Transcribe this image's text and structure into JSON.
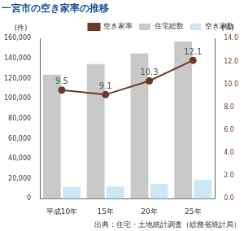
{
  "chart_data": {
    "type": "bar",
    "title": "一宮市の空き家率の推移",
    "source": "出典：住宅・土地統計調査（総務省統計局）",
    "ylabel": "(件)",
    "y2label": "(%)",
    "categories": [
      "平成10年",
      "15年",
      "20年",
      "25年"
    ],
    "series": [
      {
        "name": "住宅総数",
        "type": "bar",
        "color": "#c9c9c9",
        "values": [
          124000,
          134500,
          145000,
          157000
        ]
      },
      {
        "name": "空き家数",
        "type": "bar",
        "color": "#cde7f7",
        "values": [
          11800,
          12300,
          15000,
          19000
        ]
      },
      {
        "name": "空き家率",
        "type": "line",
        "color": "#6b3a2a",
        "marker": "circle",
        "line_style": "solid",
        "axis": "y2",
        "data_labels": true,
        "values": [
          9.5,
          9.1,
          10.3,
          12.1
        ]
      }
    ],
    "ylim": [
      0,
      160000
    ],
    "yticks": [
      0,
      {
        "value": 20000,
        "label": "20,000"
      },
      {
        "value": 40000,
        "label": "40,000"
      },
      {
        "value": 60000,
        "label": "60,000"
      },
      {
        "value": 80000,
        "label": "80,000"
      },
      {
        "value": 100000,
        "label": "100,000"
      },
      {
        "value": 120000,
        "label": "120,000"
      },
      {
        "value": 140000,
        "label": "140,000"
      },
      {
        "value": 160000,
        "label": "160,000"
      }
    ],
    "y2lim": [
      0,
      14
    ],
    "y2ticks": [
      {
        "value": 0,
        "label": "0.0"
      },
      {
        "value": 2,
        "label": "2.0"
      },
      {
        "value": 4,
        "label": "4.0"
      },
      {
        "value": 6,
        "label": "6.0"
      },
      {
        "value": 8,
        "label": "8.0"
      },
      {
        "value": 10,
        "label": "10.0"
      },
      {
        "value": 12,
        "label": "12.0"
      },
      {
        "value": 14,
        "label": "14.0"
      }
    ],
    "grid": false,
    "legend": "top"
  }
}
